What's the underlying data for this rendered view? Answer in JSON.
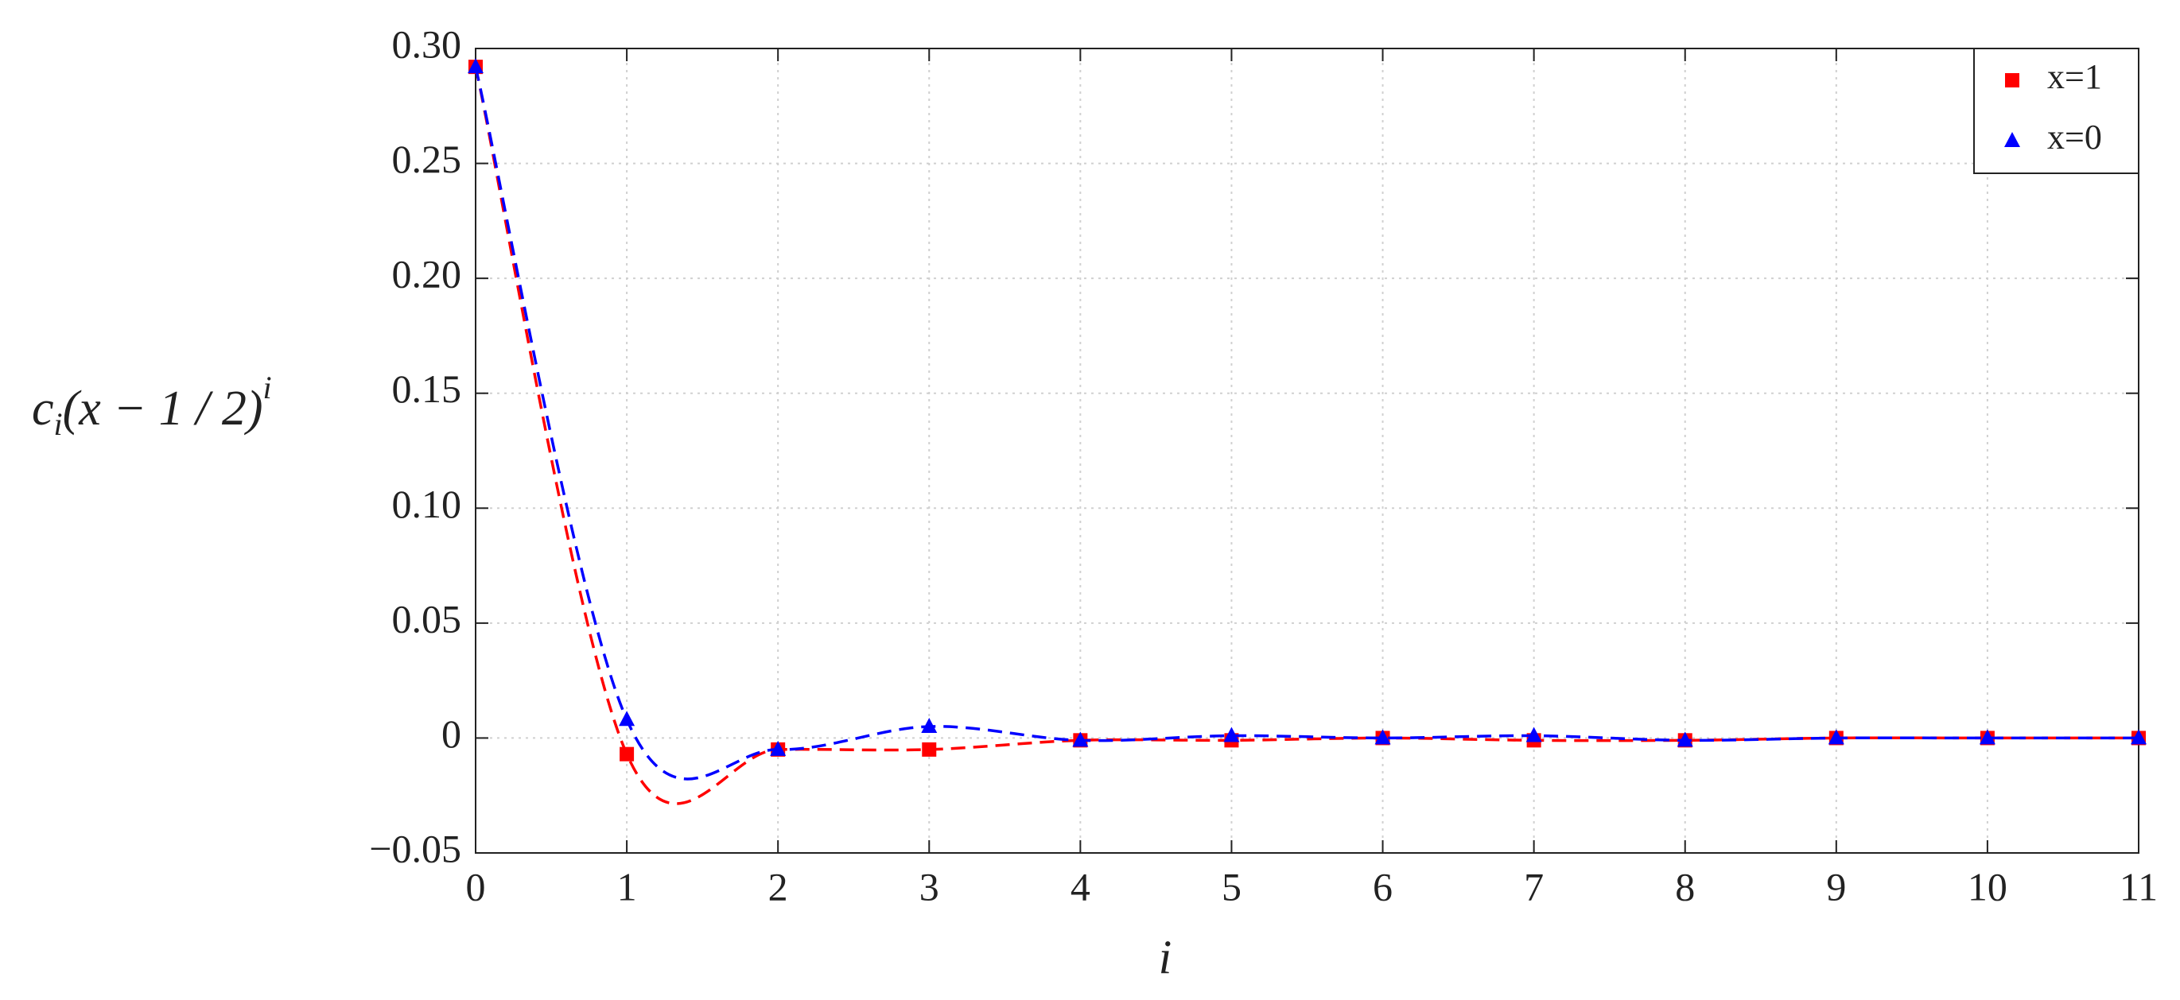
{
  "chart_data": {
    "type": "line",
    "x_label": "i",
    "y_label": [
      "c",
      "i",
      "(x − 1 / 2)",
      "i"
    ],
    "x": [
      0,
      1,
      2,
      3,
      4,
      5,
      6,
      7,
      8,
      9,
      10,
      11
    ],
    "series": [
      {
        "name": "x=1",
        "color": "#ff0000",
        "marker": "square",
        "values": [
          0.292,
          -0.007,
          -0.005,
          -0.005,
          -0.001,
          -0.001,
          0,
          -0.001,
          -0.001,
          0,
          0,
          0
        ]
      },
      {
        "name": "x=0",
        "color": "#0000ff",
        "marker": "triangle",
        "values": [
          0.292,
          0.008,
          -0.005,
          0.005,
          -0.001,
          0.001,
          0,
          0.001,
          -0.001,
          0,
          0,
          0
        ]
      }
    ],
    "xlim": [
      0,
      11
    ],
    "ylim": [
      -0.05,
      0.3
    ],
    "xticks": [
      0,
      1,
      2,
      3,
      4,
      5,
      6,
      7,
      8,
      9,
      10,
      11
    ],
    "yticks": [
      {
        "value": 0.3,
        "label": "0.30"
      },
      0.25,
      {
        "value": 0.2,
        "label": "0.20"
      },
      0.15,
      {
        "value": 0.1,
        "label": "0.10"
      },
      0.05,
      0,
      {
        "value": -0.05,
        "label": "−0.05"
      }
    ],
    "grid": true,
    "legend": "upper right",
    "line_style": "dashed"
  }
}
